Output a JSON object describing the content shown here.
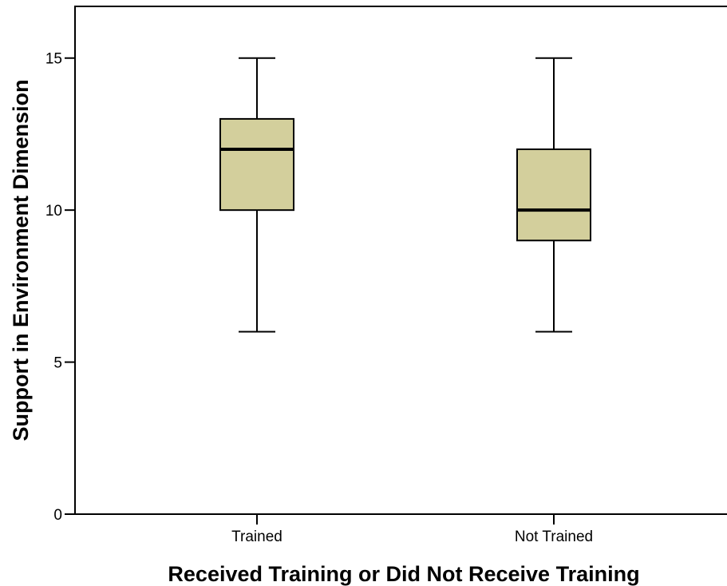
{
  "chart_data": {
    "type": "boxplot",
    "title": "",
    "xlabel": "Received Training or Did Not Receive Training",
    "ylabel": "Support in Environment Dimension",
    "ylim": [
      0,
      16.7
    ],
    "yticks": [
      0,
      5,
      10,
      15
    ],
    "ytick_labels": [
      "0",
      "5",
      "10",
      "15"
    ],
    "categories": [
      "Trained",
      "Not Trained"
    ],
    "boxes": [
      {
        "category": "Trained",
        "min": 6,
        "q1": 10,
        "median": 12,
        "q3": 13,
        "max": 15
      },
      {
        "category": "Not Trained",
        "min": 6,
        "q1": 9,
        "median": 10,
        "q3": 12,
        "max": 15
      }
    ],
    "grid": false,
    "legend": "none",
    "colors": {
      "box_fill": "#d3cf9c",
      "stroke": "#000000"
    }
  }
}
